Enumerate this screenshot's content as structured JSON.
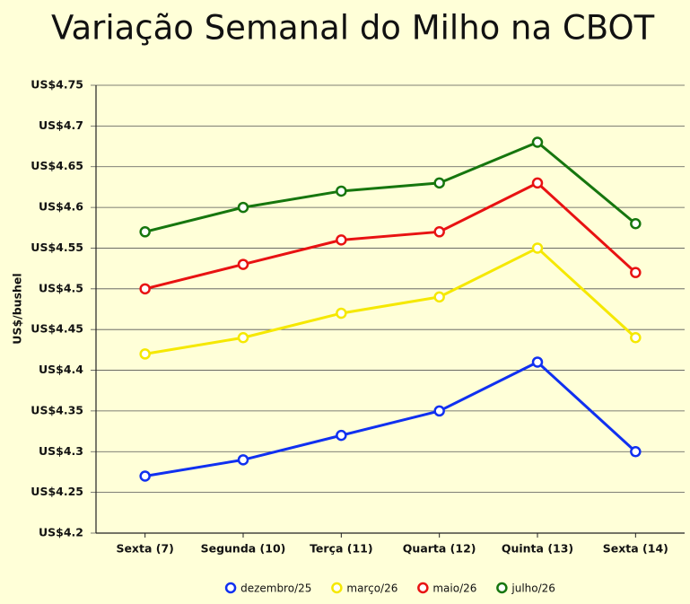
{
  "chart_data": {
    "type": "line",
    "title": "Variação Semanal do Milho na CBOT",
    "y_label": "US$/bushel",
    "categories": [
      "Sexta (7)",
      "Segunda (10)",
      "Terça (11)",
      "Quarta (12)",
      "Quinta (13)",
      "Sexta (14)"
    ],
    "series": [
      {
        "name": "dezembro/25",
        "color": "#1030f0",
        "values": [
          4.27,
          4.29,
          4.32,
          4.35,
          4.41,
          4.3
        ]
      },
      {
        "name": "março/26",
        "color": "#f5e800",
        "values": [
          4.42,
          4.44,
          4.47,
          4.49,
          4.55,
          4.44
        ]
      },
      {
        "name": "maio/26",
        "color": "#e81212",
        "values": [
          4.5,
          4.53,
          4.56,
          4.57,
          4.63,
          4.52
        ]
      },
      {
        "name": "julho/26",
        "color": "#16760e",
        "values": [
          4.57,
          4.6,
          4.62,
          4.63,
          4.68,
          4.58
        ]
      }
    ],
    "ylim": [
      4.2,
      4.75
    ],
    "yticks": [
      {
        "value": 4.2,
        "label": "US$4.2"
      },
      {
        "value": 4.25,
        "label": "US$4.25"
      },
      {
        "value": 4.3,
        "label": "US$4.3"
      },
      {
        "value": 4.35,
        "label": "US$4.35"
      },
      {
        "value": 4.4,
        "label": "US$4.4"
      },
      {
        "value": 4.45,
        "label": "US$4.45"
      },
      {
        "value": 4.5,
        "label": "US$4.5"
      },
      {
        "value": 4.55,
        "label": "US$4.55"
      },
      {
        "value": 4.6,
        "label": "US$4.6"
      },
      {
        "value": 4.65,
        "label": "US$4.65"
      },
      {
        "value": 4.7,
        "label": "US$4.7"
      },
      {
        "value": 4.75,
        "label": "US$4.75"
      }
    ],
    "grid": true,
    "legend": "bottom"
  }
}
